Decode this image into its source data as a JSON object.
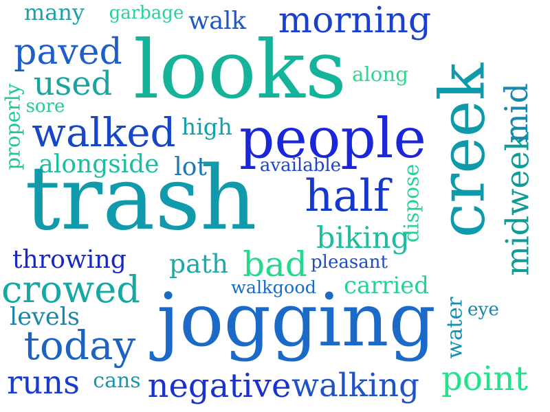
{
  "palette": {
    "blue": "#1A26D8",
    "royal": "#1550C4",
    "azure": "#1E6FC8",
    "teal": "#0E9AAA",
    "sea": "#14B39A",
    "mint": "#22D38A"
  },
  "words": [
    {
      "text": "many",
      "color": "#1AA2A6",
      "rotation": 0
    },
    {
      "text": "garbage",
      "color": "#27D19A",
      "rotation": 0
    },
    {
      "text": "walk",
      "color": "#1E58C8",
      "rotation": 0
    },
    {
      "text": "morning",
      "color": "#1A40D2",
      "rotation": 0
    },
    {
      "text": "paved",
      "color": "#1E5EC8",
      "rotation": 0
    },
    {
      "text": "looks",
      "color": "#14B39A",
      "rotation": 0
    },
    {
      "text": "creek",
      "color": "#0E9AAA",
      "rotation": -90
    },
    {
      "text": "along",
      "color": "#28D88E",
      "rotation": 0
    },
    {
      "text": "used",
      "color": "#18A5A2",
      "rotation": 0
    },
    {
      "text": "properly",
      "color": "#22C69A",
      "rotation": -90
    },
    {
      "text": "sore",
      "color": "#25CB94",
      "rotation": 0
    },
    {
      "text": "midweek",
      "color": "#119B95",
      "rotation": -90
    },
    {
      "text": "mid",
      "color": "#1888AE",
      "rotation": -90
    },
    {
      "text": "walked",
      "color": "#1846C8",
      "rotation": 0
    },
    {
      "text": "high",
      "color": "#14A0A8",
      "rotation": 0
    },
    {
      "text": "people",
      "color": "#1A26D8",
      "rotation": 0
    },
    {
      "text": "alongside",
      "color": "#19BFA0",
      "rotation": 0
    },
    {
      "text": "lot",
      "color": "#1878B8",
      "rotation": 0
    },
    {
      "text": "available",
      "color": "#1F44C8",
      "rotation": 0
    },
    {
      "text": "trash",
      "color": "#119AAB",
      "rotation": 0
    },
    {
      "text": "dispose",
      "color": "#2BD19A",
      "rotation": -90
    },
    {
      "text": "half",
      "color": "#1538CC",
      "rotation": 0
    },
    {
      "text": "biking",
      "color": "#1CBE9E",
      "rotation": 0
    },
    {
      "text": "throwing",
      "color": "#1828C8",
      "rotation": 0
    },
    {
      "text": "path",
      "color": "#1AAAA8",
      "rotation": 0
    },
    {
      "text": "bad",
      "color": "#24D88C",
      "rotation": 0
    },
    {
      "text": "pleasant",
      "color": "#1E4CC4",
      "rotation": 0
    },
    {
      "text": "crowed",
      "color": "#16A8A4",
      "rotation": 0
    },
    {
      "text": "walkgood",
      "color": "#1B6CC4",
      "rotation": 0
    },
    {
      "text": "carried",
      "color": "#22D393",
      "rotation": 0
    },
    {
      "text": "jogging",
      "color": "#1C6AC8",
      "rotation": 0
    },
    {
      "text": "eye",
      "color": "#1A86B0",
      "rotation": 0
    },
    {
      "text": "water",
      "color": "#1590B2",
      "rotation": -90
    },
    {
      "text": "levels",
      "color": "#1A86AE",
      "rotation": 0
    },
    {
      "text": "today",
      "color": "#1E62C4",
      "rotation": 0
    },
    {
      "text": "runs",
      "color": "#1A3CCE",
      "rotation": 0
    },
    {
      "text": "cans",
      "color": "#1A96AA",
      "rotation": 0
    },
    {
      "text": "negative",
      "color": "#1932CE",
      "rotation": 0
    },
    {
      "text": "walking",
      "color": "#1E52C6",
      "rotation": 0
    },
    {
      "text": "point",
      "color": "#22E28A",
      "rotation": 0
    }
  ]
}
